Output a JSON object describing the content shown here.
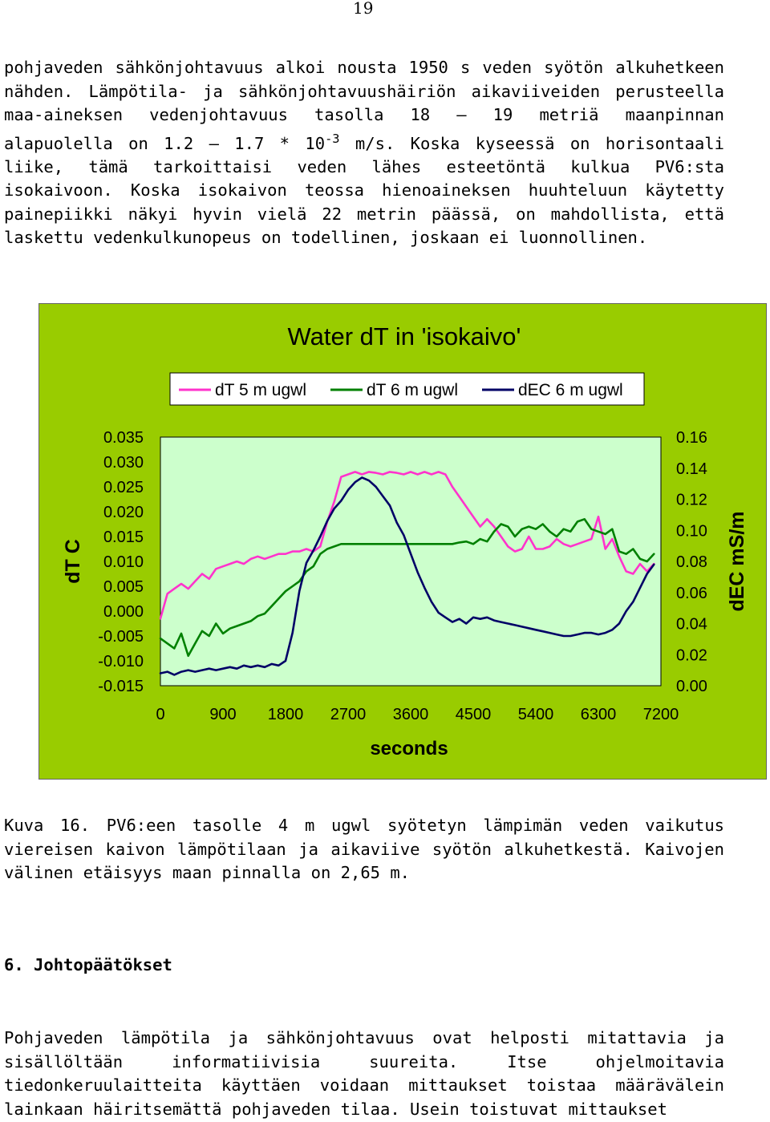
{
  "page": {
    "number": "19"
  },
  "intro": {
    "line1": "pohjaveden sähkönjohtavuus alkoi nousta 1950 s veden syötön alkuhetkeen nähden. Lämpötila- ja sähkönjohtavuushäiriön aikaviiveiden perusteella maa-aineksen vedenjohtavuus tasolla 18 – 19 metriä maanpinnan alapuolella on 1.2 – 1.7 * 10",
    "exponent": "-3",
    "line2": " m/s. Koska kyseessä on horisontaali liike, tämä tarkoittaisi veden lähes esteetöntä kulkua PV6:sta isokaivoon. Koska isokaivon teossa hienoaineksen huuhteluun käytetty painepiikki näkyi hyvin vielä 22 metrin päässä, on mahdollista, että laskettu vedenkulkunopeus on todellinen, joskaan ei luonnollinen."
  },
  "caption": "Kuva 16. PV6:een tasolle 4 m ugwl syötetyn lämpimän veden vaikutus viereisen kaivon lämpötilaan ja aikaviive syötön alkuhetkestä. Kaivojen välinen etäisyys maan pinnalla on 2,65 m.",
  "section": {
    "heading": "6. Johtopäätökset"
  },
  "final_paragraph": "Pohjaveden lämpötila ja sähkönjohtavuus ovat helposti mitattavia ja sisällöltään informatiivisia suureita. Itse ohjelmoitavia tiedonkeruulaitteita käyttäen voidaan mittaukset toistaa määrävälein lainkaan häiritsemättä pohjaveden tilaa. Usein toistuvat mittaukset",
  "chart_data": {
    "type": "line",
    "title": "Water dT in 'isokaivo'",
    "xlabel": "seconds",
    "ylabel": "dT C",
    "y2label": "dEC mS/m",
    "xlim": [
      0,
      7200
    ],
    "ylim": [
      -0.015,
      0.035
    ],
    "y2lim": [
      0,
      0.16
    ],
    "xticks": [
      "0",
      "900",
      "1800",
      "2700",
      "3600",
      "4500",
      "5400",
      "6300",
      "7200"
    ],
    "yticks": [
      "0.035",
      "0.030",
      "0.025",
      "0.020",
      "0.015",
      "0.010",
      "0.005",
      "0.000",
      "-0.005",
      "-0.010",
      "-0.015"
    ],
    "y2ticks": [
      "0.16",
      "0.14",
      "0.12",
      "0.10",
      "0.08",
      "0.06",
      "0.04",
      "0.02",
      "0.00"
    ],
    "legend_position": "top",
    "background_color": "#99cc00",
    "plot_area_color": "#ccffcc",
    "grid": false,
    "series": [
      {
        "name": "dT 5 m ugwl",
        "color": "#ff33cc",
        "axis": "left",
        "x": [
          0,
          100,
          200,
          300,
          400,
          500,
          600,
          700,
          800,
          900,
          1000,
          1100,
          1200,
          1300,
          1400,
          1500,
          1600,
          1700,
          1800,
          1900,
          2000,
          2100,
          2200,
          2300,
          2400,
          2500,
          2600,
          2700,
          2800,
          2900,
          3000,
          3100,
          3200,
          3300,
          3400,
          3500,
          3600,
          3700,
          3800,
          3900,
          4000,
          4100,
          4200,
          4300,
          4400,
          4500,
          4600,
          4700,
          4800,
          4900,
          5000,
          5100,
          5200,
          5300,
          5400,
          5500,
          5600,
          5700,
          5800,
          5900,
          6000,
          6100,
          6200,
          6300,
          6400,
          6500,
          6600,
          6700,
          6800,
          6900,
          7000,
          7100
        ],
        "y": [
          -0.0015,
          0.0035,
          0.0045,
          0.0055,
          0.0045,
          0.006,
          0.0075,
          0.0065,
          0.0085,
          0.009,
          0.0095,
          0.01,
          0.0095,
          0.0105,
          0.011,
          0.0105,
          0.011,
          0.0115,
          0.0115,
          0.012,
          0.012,
          0.0125,
          0.012,
          0.013,
          0.018,
          0.022,
          0.027,
          0.0275,
          0.028,
          0.0275,
          0.028,
          0.0278,
          0.0275,
          0.028,
          0.0278,
          0.0275,
          0.028,
          0.0275,
          0.028,
          0.0275,
          0.028,
          0.0275,
          0.025,
          0.023,
          0.021,
          0.019,
          0.017,
          0.0185,
          0.017,
          0.015,
          0.013,
          0.012,
          0.0125,
          0.015,
          0.0125,
          0.0125,
          0.013,
          0.0145,
          0.0135,
          0.013,
          0.0135,
          0.014,
          0.0145,
          0.019,
          0.0125,
          0.0145,
          0.011,
          0.008,
          0.0075,
          0.0095,
          0.008,
          0.0095
        ]
      },
      {
        "name": "dT 6 m ugwl",
        "color": "#008000",
        "axis": "left",
        "x": [
          0,
          100,
          200,
          300,
          400,
          500,
          600,
          700,
          800,
          900,
          1000,
          1100,
          1200,
          1300,
          1400,
          1500,
          1600,
          1700,
          1800,
          1900,
          2000,
          2100,
          2200,
          2300,
          2400,
          2500,
          2600,
          2700,
          2800,
          2900,
          3000,
          3100,
          3200,
          3300,
          3400,
          3500,
          3600,
          3700,
          3800,
          3900,
          4000,
          4100,
          4200,
          4300,
          4400,
          4500,
          4600,
          4700,
          4800,
          4900,
          5000,
          5100,
          5200,
          5300,
          5400,
          5500,
          5600,
          5700,
          5800,
          5900,
          6000,
          6100,
          6200,
          6300,
          6400,
          6500,
          6600,
          6700,
          6800,
          6900,
          7000,
          7100
        ],
        "y": [
          -0.0055,
          -0.0065,
          -0.0075,
          -0.0045,
          -0.009,
          -0.0065,
          -0.004,
          -0.005,
          -0.0025,
          -0.0045,
          -0.0035,
          -0.003,
          -0.0025,
          -0.002,
          -0.001,
          -0.0005,
          0.001,
          0.0025,
          0.004,
          0.005,
          0.006,
          0.008,
          0.009,
          0.0115,
          0.0125,
          0.013,
          0.0135,
          0.0135,
          0.0135,
          0.0135,
          0.0135,
          0.0135,
          0.0135,
          0.0135,
          0.0135,
          0.0135,
          0.0135,
          0.0135,
          0.0135,
          0.0135,
          0.0135,
          0.0135,
          0.0135,
          0.0138,
          0.014,
          0.0135,
          0.0145,
          0.014,
          0.016,
          0.0175,
          0.017,
          0.015,
          0.0165,
          0.017,
          0.0165,
          0.0175,
          0.016,
          0.015,
          0.0165,
          0.016,
          0.018,
          0.0185,
          0.0165,
          0.016,
          0.0155,
          0.0165,
          0.012,
          0.0115,
          0.0125,
          0.0105,
          0.01,
          0.0115
        ]
      },
      {
        "name": "dEC 6 m ugwl",
        "color": "#000066",
        "axis": "right",
        "x": [
          0,
          100,
          200,
          300,
          400,
          500,
          600,
          700,
          800,
          900,
          1000,
          1100,
          1200,
          1300,
          1400,
          1500,
          1600,
          1700,
          1800,
          1900,
          2000,
          2100,
          2200,
          2300,
          2400,
          2500,
          2600,
          2700,
          2800,
          2900,
          3000,
          3100,
          3200,
          3300,
          3400,
          3500,
          3600,
          3700,
          3800,
          3900,
          4000,
          4100,
          4200,
          4300,
          4400,
          4500,
          4600,
          4700,
          4800,
          4900,
          5000,
          5100,
          5200,
          5300,
          5400,
          5500,
          5600,
          5700,
          5800,
          5900,
          6000,
          6100,
          6200,
          6300,
          6400,
          6500,
          6600,
          6700,
          6800,
          6900,
          7000,
          7100
        ],
        "y": [
          0.008,
          0.009,
          0.007,
          0.009,
          0.01,
          0.009,
          0.01,
          0.011,
          0.01,
          0.011,
          0.012,
          0.011,
          0.013,
          0.012,
          0.013,
          0.012,
          0.014,
          0.013,
          0.016,
          0.034,
          0.061,
          0.079,
          0.087,
          0.096,
          0.106,
          0.114,
          0.119,
          0.126,
          0.131,
          0.134,
          0.132,
          0.128,
          0.122,
          0.116,
          0.105,
          0.097,
          0.085,
          0.073,
          0.063,
          0.054,
          0.047,
          0.044,
          0.041,
          0.043,
          0.04,
          0.044,
          0.043,
          0.044,
          0.042,
          0.041,
          0.04,
          0.039,
          0.038,
          0.037,
          0.036,
          0.035,
          0.034,
          0.033,
          0.032,
          0.032,
          0.033,
          0.034,
          0.034,
          0.033,
          0.034,
          0.036,
          0.04,
          0.048,
          0.054,
          0.063,
          0.072,
          0.078
        ]
      }
    ]
  }
}
